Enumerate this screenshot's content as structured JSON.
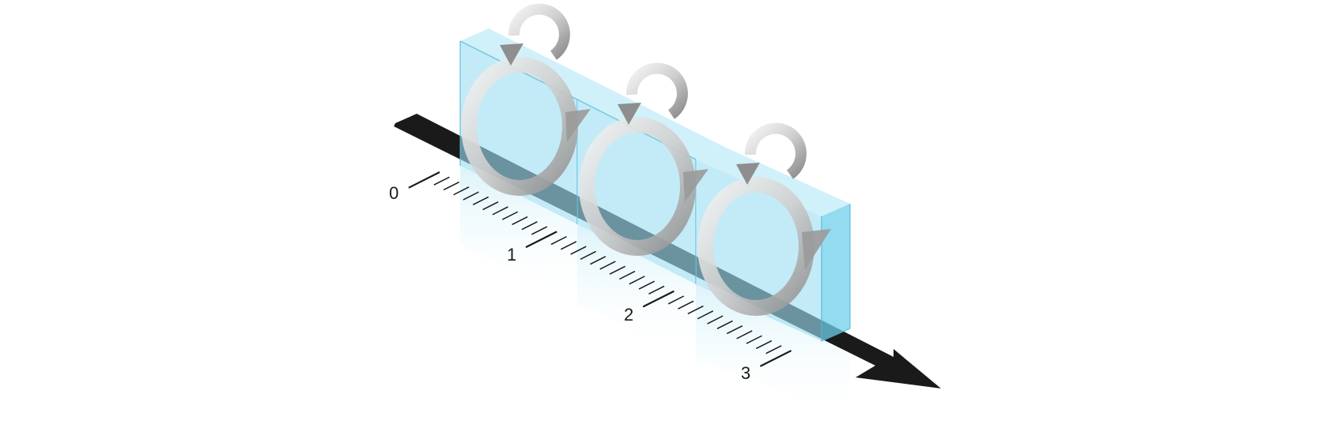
{
  "scale": {
    "labels": [
      "0",
      "1",
      "2",
      "3"
    ]
  },
  "blocks": {
    "count": 3
  },
  "colors": {
    "block_front": "#9edff2",
    "block_top": "#c8eef8",
    "block_side": "#6fcfe8",
    "block_edge": "#4fb8d8",
    "arrow": "#1a1a1a",
    "ring_light": "#eeeeee",
    "ring_dark": "#9a9a9a",
    "tick": "#1a1a1a"
  },
  "icons": [
    "rotation-arrow-icon",
    "direction-arrow-icon"
  ]
}
